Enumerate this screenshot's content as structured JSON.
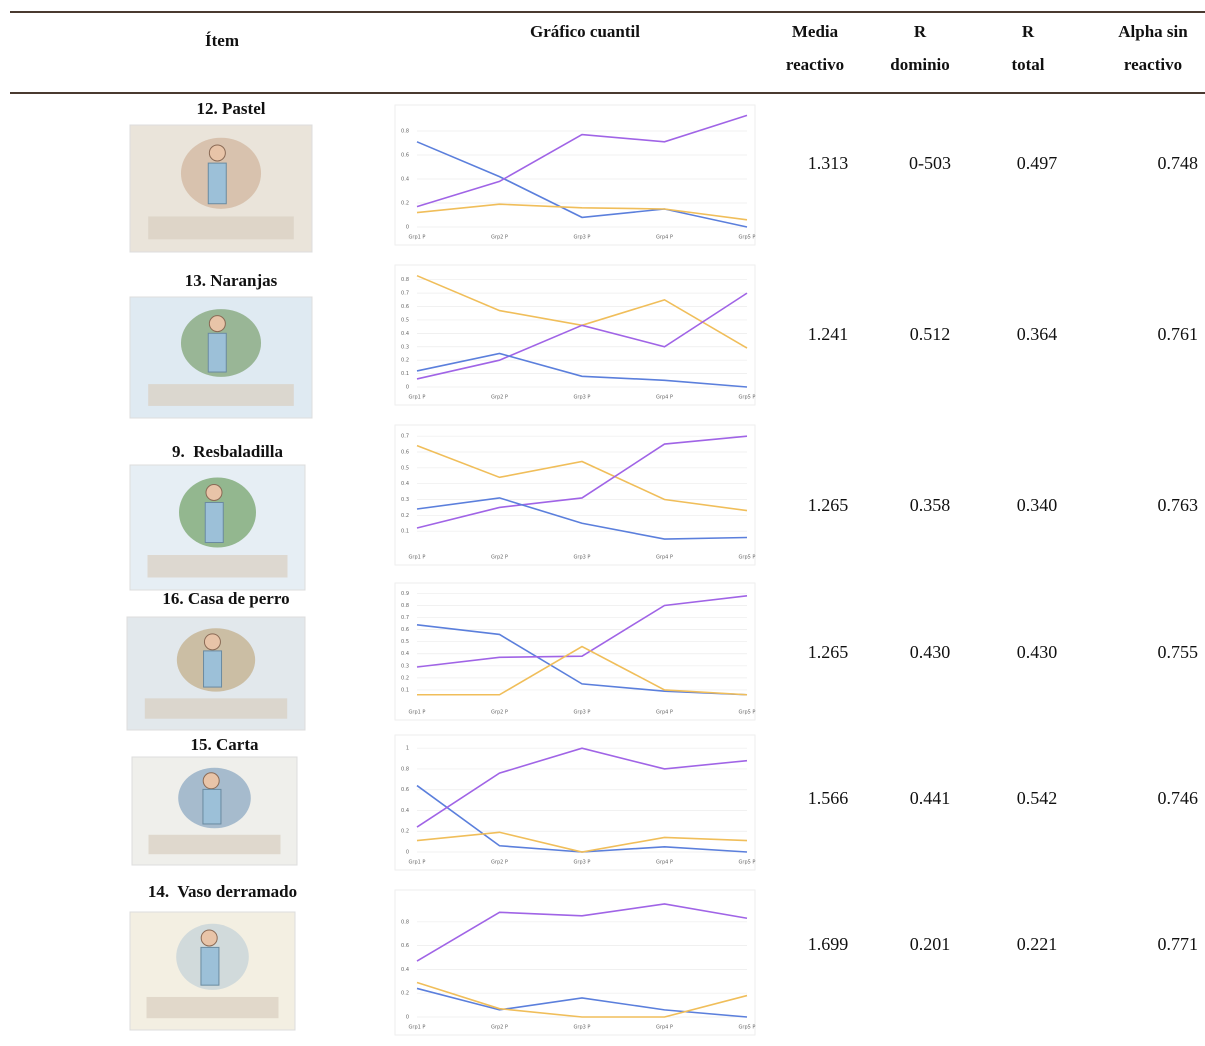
{
  "table": {
    "headers": [
      [
        "Ítem"
      ],
      [
        "Gráfico cuantil"
      ],
      [
        "Media",
        "reactivo"
      ],
      [
        "R",
        "dominio"
      ],
      [
        "R",
        "total"
      ],
      [
        "Alpha sin",
        "reactivo"
      ]
    ],
    "rows": [
      {
        "item": "12. Pastel",
        "cells": [
          "1.313",
          "0-503",
          "0.497",
          "0.748"
        ],
        "chart": {
          "type": "line",
          "categories": [
            "Grp1 P",
            "Grp2 P",
            "Grp3 P",
            "Grp4 P",
            "Grp5 P"
          ],
          "ylim": [
            0,
            0.95
          ],
          "yticks": [
            0,
            0.2,
            0.4,
            0.6,
            0.8
          ],
          "series": [
            {
              "color": "#5b7fdc",
              "values": [
                0.71,
                0.42,
                0.08,
                0.15,
                0
              ]
            },
            {
              "color": "#a064e6",
              "values": [
                0.17,
                0.38,
                0.77,
                0.71,
                0.93
              ]
            },
            {
              "color": "#f0be5a",
              "values": [
                0.12,
                0.19,
                0.16,
                0.15,
                0.06
              ]
            }
          ]
        }
      },
      {
        "item": "13. Naranjas",
        "cells": [
          "1.241",
          "0.512",
          "0.364",
          "0.761"
        ],
        "chart": {
          "type": "line",
          "categories": [
            "Grp1 P",
            "Grp2 P",
            "Grp3 P",
            "Grp4 P",
            "Grp5 P"
          ],
          "ylim": [
            0,
            0.85
          ],
          "yticks": [
            0,
            0.1,
            0.2,
            0.3,
            0.4,
            0.5,
            0.6,
            0.7,
            0.8
          ],
          "series": [
            {
              "color": "#f0be5a",
              "values": [
                0.83,
                0.57,
                0.46,
                0.65,
                0.29
              ]
            },
            {
              "color": "#a064e6",
              "values": [
                0.06,
                0.2,
                0.46,
                0.3,
                0.7
              ]
            },
            {
              "color": "#5b7fdc",
              "values": [
                0.12,
                0.25,
                0.08,
                0.05,
                0
              ]
            }
          ]
        }
      },
      {
        "item": "9.  Resbaladilla",
        "cells": [
          "1.265",
          "0.358",
          "0.340",
          "0.763"
        ],
        "chart": {
          "type": "line",
          "categories": [
            "Grp1 P",
            "Grp2 P",
            "Grp3 P",
            "Grp4 P",
            "Grp5 P"
          ],
          "ylim": [
            0,
            0.72
          ],
          "yticks": [
            0.1,
            0.2,
            0.3,
            0.4,
            0.5,
            0.6,
            0.7
          ],
          "series": [
            {
              "color": "#f0be5a",
              "values": [
                0.64,
                0.44,
                0.54,
                0.3,
                0.23
              ]
            },
            {
              "color": "#a064e6",
              "values": [
                0.12,
                0.25,
                0.31,
                0.65,
                0.7
              ]
            },
            {
              "color": "#5b7fdc",
              "values": [
                0.24,
                0.31,
                0.15,
                0.05,
                0.06
              ]
            }
          ]
        }
      },
      {
        "item": "16. Casa de perro",
        "cells": [
          "1.265",
          "0.430",
          "0.430",
          "0.755"
        ],
        "chart": {
          "type": "line",
          "categories": [
            "Grp1 P",
            "Grp2 P",
            "Grp3 P",
            "Grp4 P",
            "Grp5 P"
          ],
          "ylim": [
            0,
            0.92
          ],
          "yticks": [
            0.1,
            0.2,
            0.3,
            0.4,
            0.5,
            0.6,
            0.7,
            0.8,
            0.9
          ],
          "series": [
            {
              "color": "#5b7fdc",
              "values": [
                0.64,
                0.56,
                0.15,
                0.09,
                0.06
              ]
            },
            {
              "color": "#a064e6",
              "values": [
                0.29,
                0.37,
                0.38,
                0.8,
                0.88
              ]
            },
            {
              "color": "#f0be5a",
              "values": [
                0.06,
                0.06,
                0.46,
                0.1,
                0.06
              ]
            }
          ]
        }
      },
      {
        "item": "15. Carta",
        "cells": [
          "1.566",
          "0.441",
          "0.542",
          "0.746"
        ],
        "chart": {
          "type": "line",
          "categories": [
            "Grp1 P",
            "Grp2 P",
            "Grp3 P",
            "Grp4 P",
            "Grp5 P"
          ],
          "ylim": [
            0,
            1.05
          ],
          "yticks": [
            0,
            0.2,
            0.4,
            0.6,
            0.8,
            1
          ],
          "series": [
            {
              "color": "#5b7fdc",
              "values": [
                0.64,
                0.06,
                0,
                0.05,
                0
              ]
            },
            {
              "color": "#a064e6",
              "values": [
                0.24,
                0.76,
                1,
                0.8,
                0.88
              ]
            },
            {
              "color": "#f0be5a",
              "values": [
                0.11,
                0.19,
                0,
                0.14,
                0.11
              ]
            }
          ]
        }
      },
      {
        "item": "14.  Vaso derramado",
        "cells": [
          "1.699",
          "0.201",
          "0.221",
          "0.771"
        ],
        "chart": {
          "type": "line",
          "categories": [
            "Grp1 P",
            "Grp2 P",
            "Grp3 P",
            "Grp4 P",
            "Grp5 P"
          ],
          "ylim": [
            0,
            1
          ],
          "yticks": [
            0,
            0.2,
            0.4,
            0.6,
            0.8
          ],
          "series": [
            {
              "color": "#a064e6",
              "values": [
                0.47,
                0.88,
                0.85,
                0.95,
                0.83
              ]
            },
            {
              "color": "#5b7fdc",
              "values": [
                0.24,
                0.06,
                0.16,
                0.06,
                0
              ]
            },
            {
              "color": "#f0be5a",
              "values": [
                0.29,
                0.07,
                0,
                0,
                0.18
              ]
            }
          ]
        }
      }
    ]
  }
}
